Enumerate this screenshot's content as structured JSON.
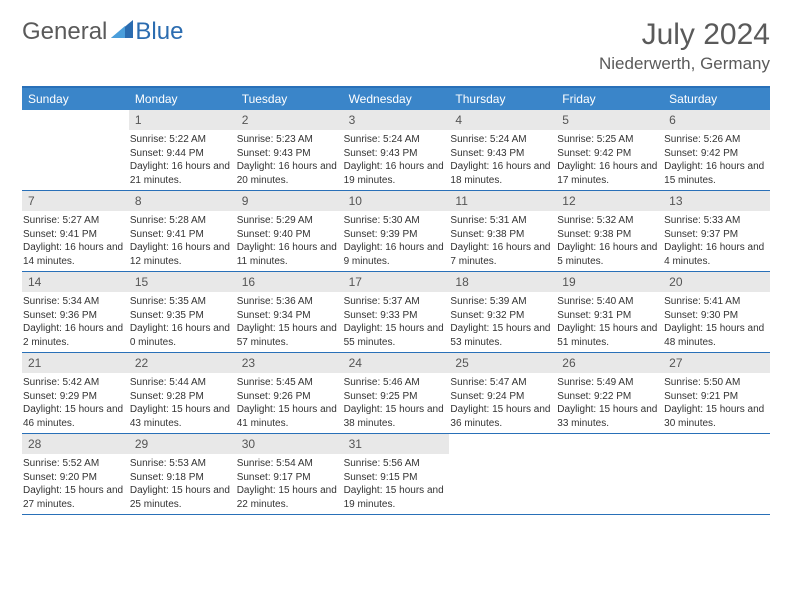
{
  "logo": {
    "text1": "General",
    "text2": "Blue"
  },
  "title": {
    "month_year": "July 2024",
    "location": "Niederwerth, Germany"
  },
  "colors": {
    "header_bg": "#3a85c9",
    "border": "#2970b8",
    "daynum_bg": "#e8e8e8",
    "text": "#333333",
    "muted": "#5a5a5a"
  },
  "weekdays": [
    "Sunday",
    "Monday",
    "Tuesday",
    "Wednesday",
    "Thursday",
    "Friday",
    "Saturday"
  ],
  "weeks": [
    [
      {
        "n": "",
        "sr": "",
        "ss": "",
        "dl": ""
      },
      {
        "n": "1",
        "sr": "Sunrise: 5:22 AM",
        "ss": "Sunset: 9:44 PM",
        "dl": "Daylight: 16 hours and 21 minutes."
      },
      {
        "n": "2",
        "sr": "Sunrise: 5:23 AM",
        "ss": "Sunset: 9:43 PM",
        "dl": "Daylight: 16 hours and 20 minutes."
      },
      {
        "n": "3",
        "sr": "Sunrise: 5:24 AM",
        "ss": "Sunset: 9:43 PM",
        "dl": "Daylight: 16 hours and 19 minutes."
      },
      {
        "n": "4",
        "sr": "Sunrise: 5:24 AM",
        "ss": "Sunset: 9:43 PM",
        "dl": "Daylight: 16 hours and 18 minutes."
      },
      {
        "n": "5",
        "sr": "Sunrise: 5:25 AM",
        "ss": "Sunset: 9:42 PM",
        "dl": "Daylight: 16 hours and 17 minutes."
      },
      {
        "n": "6",
        "sr": "Sunrise: 5:26 AM",
        "ss": "Sunset: 9:42 PM",
        "dl": "Daylight: 16 hours and 15 minutes."
      }
    ],
    [
      {
        "n": "7",
        "sr": "Sunrise: 5:27 AM",
        "ss": "Sunset: 9:41 PM",
        "dl": "Daylight: 16 hours and 14 minutes."
      },
      {
        "n": "8",
        "sr": "Sunrise: 5:28 AM",
        "ss": "Sunset: 9:41 PM",
        "dl": "Daylight: 16 hours and 12 minutes."
      },
      {
        "n": "9",
        "sr": "Sunrise: 5:29 AM",
        "ss": "Sunset: 9:40 PM",
        "dl": "Daylight: 16 hours and 11 minutes."
      },
      {
        "n": "10",
        "sr": "Sunrise: 5:30 AM",
        "ss": "Sunset: 9:39 PM",
        "dl": "Daylight: 16 hours and 9 minutes."
      },
      {
        "n": "11",
        "sr": "Sunrise: 5:31 AM",
        "ss": "Sunset: 9:38 PM",
        "dl": "Daylight: 16 hours and 7 minutes."
      },
      {
        "n": "12",
        "sr": "Sunrise: 5:32 AM",
        "ss": "Sunset: 9:38 PM",
        "dl": "Daylight: 16 hours and 5 minutes."
      },
      {
        "n": "13",
        "sr": "Sunrise: 5:33 AM",
        "ss": "Sunset: 9:37 PM",
        "dl": "Daylight: 16 hours and 4 minutes."
      }
    ],
    [
      {
        "n": "14",
        "sr": "Sunrise: 5:34 AM",
        "ss": "Sunset: 9:36 PM",
        "dl": "Daylight: 16 hours and 2 minutes."
      },
      {
        "n": "15",
        "sr": "Sunrise: 5:35 AM",
        "ss": "Sunset: 9:35 PM",
        "dl": "Daylight: 16 hours and 0 minutes."
      },
      {
        "n": "16",
        "sr": "Sunrise: 5:36 AM",
        "ss": "Sunset: 9:34 PM",
        "dl": "Daylight: 15 hours and 57 minutes."
      },
      {
        "n": "17",
        "sr": "Sunrise: 5:37 AM",
        "ss": "Sunset: 9:33 PM",
        "dl": "Daylight: 15 hours and 55 minutes."
      },
      {
        "n": "18",
        "sr": "Sunrise: 5:39 AM",
        "ss": "Sunset: 9:32 PM",
        "dl": "Daylight: 15 hours and 53 minutes."
      },
      {
        "n": "19",
        "sr": "Sunrise: 5:40 AM",
        "ss": "Sunset: 9:31 PM",
        "dl": "Daylight: 15 hours and 51 minutes."
      },
      {
        "n": "20",
        "sr": "Sunrise: 5:41 AM",
        "ss": "Sunset: 9:30 PM",
        "dl": "Daylight: 15 hours and 48 minutes."
      }
    ],
    [
      {
        "n": "21",
        "sr": "Sunrise: 5:42 AM",
        "ss": "Sunset: 9:29 PM",
        "dl": "Daylight: 15 hours and 46 minutes."
      },
      {
        "n": "22",
        "sr": "Sunrise: 5:44 AM",
        "ss": "Sunset: 9:28 PM",
        "dl": "Daylight: 15 hours and 43 minutes."
      },
      {
        "n": "23",
        "sr": "Sunrise: 5:45 AM",
        "ss": "Sunset: 9:26 PM",
        "dl": "Daylight: 15 hours and 41 minutes."
      },
      {
        "n": "24",
        "sr": "Sunrise: 5:46 AM",
        "ss": "Sunset: 9:25 PM",
        "dl": "Daylight: 15 hours and 38 minutes."
      },
      {
        "n": "25",
        "sr": "Sunrise: 5:47 AM",
        "ss": "Sunset: 9:24 PM",
        "dl": "Daylight: 15 hours and 36 minutes."
      },
      {
        "n": "26",
        "sr": "Sunrise: 5:49 AM",
        "ss": "Sunset: 9:22 PM",
        "dl": "Daylight: 15 hours and 33 minutes."
      },
      {
        "n": "27",
        "sr": "Sunrise: 5:50 AM",
        "ss": "Sunset: 9:21 PM",
        "dl": "Daylight: 15 hours and 30 minutes."
      }
    ],
    [
      {
        "n": "28",
        "sr": "Sunrise: 5:52 AM",
        "ss": "Sunset: 9:20 PM",
        "dl": "Daylight: 15 hours and 27 minutes."
      },
      {
        "n": "29",
        "sr": "Sunrise: 5:53 AM",
        "ss": "Sunset: 9:18 PM",
        "dl": "Daylight: 15 hours and 25 minutes."
      },
      {
        "n": "30",
        "sr": "Sunrise: 5:54 AM",
        "ss": "Sunset: 9:17 PM",
        "dl": "Daylight: 15 hours and 22 minutes."
      },
      {
        "n": "31",
        "sr": "Sunrise: 5:56 AM",
        "ss": "Sunset: 9:15 PM",
        "dl": "Daylight: 15 hours and 19 minutes."
      },
      {
        "n": "",
        "sr": "",
        "ss": "",
        "dl": ""
      },
      {
        "n": "",
        "sr": "",
        "ss": "",
        "dl": ""
      },
      {
        "n": "",
        "sr": "",
        "ss": "",
        "dl": ""
      }
    ]
  ]
}
